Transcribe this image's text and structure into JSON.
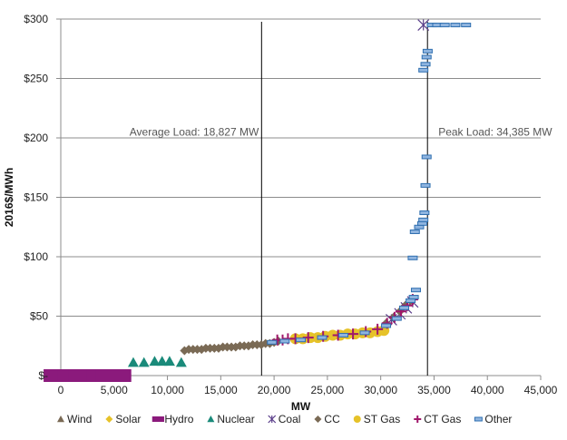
{
  "chart_data": {
    "type": "scatter",
    "title": "",
    "xlabel": "MW",
    "ylabel": "2016$/MWh",
    "xlim": [
      0,
      45000
    ],
    "ylim": [
      0,
      300
    ],
    "x_ticks": [
      0,
      5000,
      10000,
      15000,
      20000,
      25000,
      30000,
      35000,
      40000,
      45000
    ],
    "x_tick_labels": [
      "0",
      "5,000",
      "10,000",
      "15,000",
      "20,000",
      "25,000",
      "30,000",
      "35,000",
      "40,000",
      "45,000"
    ],
    "y_ticks": [
      0,
      50,
      100,
      150,
      200,
      250,
      300
    ],
    "y_tick_labels": [
      "$-",
      "$50",
      "$100",
      "$150",
      "$200",
      "$250",
      "$300"
    ],
    "grid": "horizontal",
    "legend_position": "bottom",
    "annotations": [
      {
        "id": "avg",
        "text": "Average  Load:  18,827  MW",
        "x": 18827,
        "label_side": "left",
        "label_y": 205
      },
      {
        "id": "peak",
        "text": "Peak Load:  34,385  MW",
        "x": 34385,
        "label_side": "right",
        "label_y": 205
      }
    ],
    "series": [
      {
        "name": "Wind",
        "marker": "triangle",
        "color": "#7a6a55",
        "points": [
          [
            5900,
            0
          ]
        ]
      },
      {
        "name": "Solar",
        "marker": "diamond",
        "color": "#e6c229",
        "points": [
          [
            6000,
            0
          ]
        ]
      },
      {
        "name": "Hydro",
        "marker": "square",
        "color": "#8b1a7c",
        "points": [
          [
            -300,
            0
          ],
          [
            1000,
            0
          ],
          [
            2000,
            0
          ],
          [
            3700,
            0
          ],
          [
            4600,
            0
          ],
          [
            5300,
            0
          ]
        ]
      },
      {
        "name": "Nuclear",
        "marker": "triangle",
        "color": "#1a8a7a",
        "points": [
          [
            6800,
            11
          ],
          [
            7800,
            11
          ],
          [
            8800,
            12
          ],
          [
            9500,
            12
          ],
          [
            10200,
            12
          ],
          [
            11300,
            11
          ]
        ]
      },
      {
        "name": "Coal",
        "marker": "asterisk",
        "color": "#5a3e8a",
        "points": [
          [
            31000,
            47
          ],
          [
            31800,
            52
          ],
          [
            32400,
            57
          ],
          [
            33000,
            62
          ],
          [
            34000,
            295
          ]
        ]
      },
      {
        "name": "CC",
        "marker": "diamond",
        "color": "#7a6a55",
        "points": [
          [
            11600,
            21
          ],
          [
            12000,
            22
          ],
          [
            12400,
            22
          ],
          [
            12800,
            22
          ],
          [
            13200,
            22
          ],
          [
            13600,
            23
          ],
          [
            14000,
            23
          ],
          [
            14400,
            23
          ],
          [
            14800,
            23
          ],
          [
            15200,
            24
          ],
          [
            15600,
            24
          ],
          [
            16000,
            24
          ],
          [
            16400,
            24
          ],
          [
            16800,
            25
          ],
          [
            17200,
            25
          ],
          [
            17600,
            25
          ],
          [
            18000,
            26
          ],
          [
            18400,
            26
          ],
          [
            18800,
            26
          ],
          [
            19200,
            27
          ],
          [
            19600,
            27
          ],
          [
            20000,
            28
          ],
          [
            20400,
            29
          ],
          [
            30500,
            44
          ],
          [
            31200,
            49
          ],
          [
            31800,
            54
          ],
          [
            32300,
            59
          ],
          [
            32800,
            63
          ]
        ]
      },
      {
        "name": "ST Gas",
        "marker": "circle",
        "color": "#e6c229",
        "points": [
          [
            22000,
            31
          ],
          [
            22700,
            31
          ],
          [
            23400,
            32
          ],
          [
            24100,
            32
          ],
          [
            24800,
            33
          ],
          [
            25500,
            34
          ],
          [
            26200,
            34
          ],
          [
            26900,
            35
          ],
          [
            27600,
            35
          ],
          [
            28300,
            36
          ],
          [
            29000,
            36
          ],
          [
            29700,
            37
          ],
          [
            30300,
            38
          ]
        ]
      },
      {
        "name": "CT Gas",
        "marker": "plus",
        "color": "#a0176b",
        "points": [
          [
            20300,
            30
          ],
          [
            20800,
            30
          ],
          [
            21300,
            31
          ],
          [
            22000,
            31
          ],
          [
            23200,
            32
          ],
          [
            24600,
            33
          ],
          [
            26000,
            34
          ],
          [
            27400,
            35
          ],
          [
            28600,
            37
          ],
          [
            29700,
            39
          ],
          [
            30600,
            44
          ],
          [
            31300,
            49
          ],
          [
            31900,
            54
          ],
          [
            32500,
            59
          ],
          [
            33000,
            64
          ]
        ]
      },
      {
        "name": "Other",
        "marker": "dash",
        "color": "#2f6fb0",
        "points": [
          [
            19800,
            28
          ],
          [
            21000,
            29
          ],
          [
            22500,
            30
          ],
          [
            24500,
            32
          ],
          [
            26500,
            34
          ],
          [
            28500,
            36
          ],
          [
            30500,
            42
          ],
          [
            31500,
            48
          ],
          [
            32200,
            57
          ],
          [
            32800,
            63
          ],
          [
            33100,
            66
          ],
          [
            33300,
            72
          ],
          [
            33000,
            99
          ],
          [
            33200,
            121
          ],
          [
            33600,
            125
          ],
          [
            33900,
            128
          ],
          [
            34000,
            131
          ],
          [
            34100,
            137
          ],
          [
            34200,
            160
          ],
          [
            34300,
            184
          ],
          [
            34000,
            257
          ],
          [
            34200,
            262
          ],
          [
            34300,
            268
          ],
          [
            34400,
            273
          ],
          [
            34800,
            295
          ],
          [
            35300,
            295
          ],
          [
            36000,
            295
          ],
          [
            37000,
            295
          ],
          [
            38000,
            295
          ]
        ]
      }
    ]
  }
}
